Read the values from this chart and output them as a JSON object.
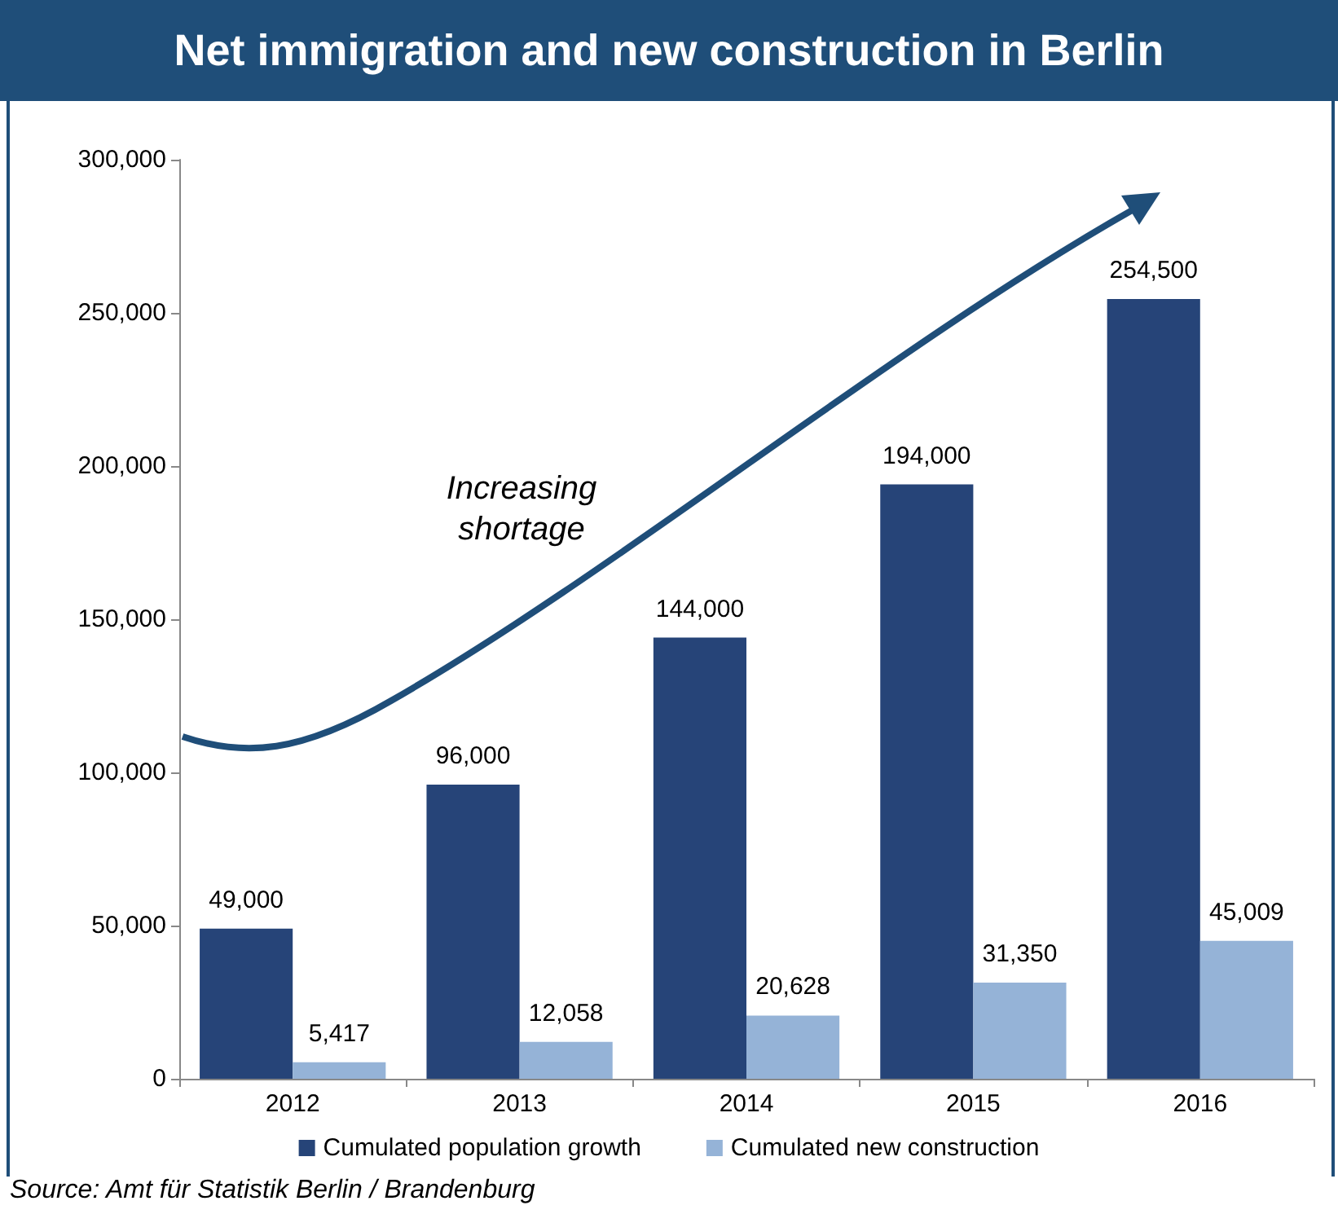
{
  "chart_data": {
    "type": "bar",
    "title": "Net immigration and new construction in Berlin",
    "categories": [
      "2012",
      "2013",
      "2014",
      "2015",
      "2016"
    ],
    "series": [
      {
        "name": "Cumulated population growth",
        "color": "#264478",
        "values": [
          49000,
          96000,
          144000,
          194000,
          254500
        ],
        "value_labels": [
          "49,000",
          "96,000",
          "144,000",
          "194,000",
          "254,500"
        ]
      },
      {
        "name": "Cumulated new construction",
        "color": "#95b3d7",
        "values": [
          5417,
          12058,
          20628,
          31350,
          45009
        ],
        "value_labels": [
          "5,417",
          "12,058",
          "20,628",
          "31,350",
          "45,009"
        ]
      }
    ],
    "ylim": [
      0,
      300000
    ],
    "yticks": [
      0,
      {
        "value": 50000,
        "label": "50,000"
      },
      {
        "value": 100000,
        "label": "100,000"
      },
      {
        "value": 150000,
        "label": "150,000"
      },
      {
        "value": 200000,
        "label": "200,000"
      },
      {
        "value": 250000,
        "label": "250,000"
      },
      {
        "value": 300000,
        "label": "300,000"
      }
    ],
    "grid": false,
    "legend": "bottom",
    "annotations": [
      "Increasing shortage",
      "Source: Amt für Statistik Berlin / Brandenburg"
    ]
  }
}
